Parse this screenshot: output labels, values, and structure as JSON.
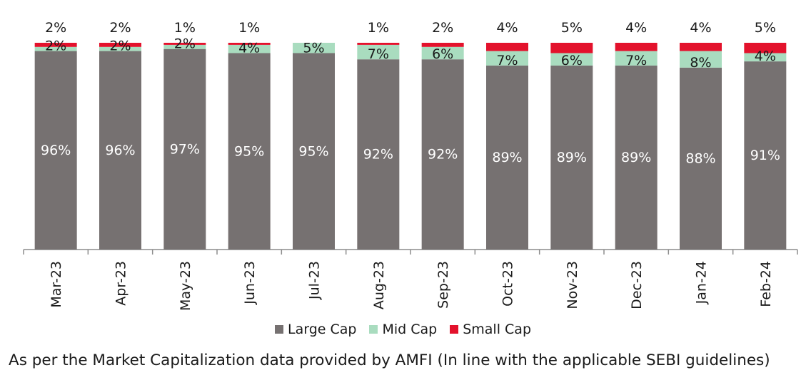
{
  "chart_data": {
    "type": "bar",
    "stacked": true,
    "categories": [
      "Mar-23",
      "Apr-23",
      "May-23",
      "Jun-23",
      "Jul-23",
      "Aug-23",
      "Sep-23",
      "Oct-23",
      "Nov-23",
      "Dec-23",
      "Jan-24",
      "Feb-24"
    ],
    "series": [
      {
        "name": "Large Cap",
        "color": "#767171",
        "values": [
          96,
          96,
          97,
          95,
          95,
          92,
          92,
          89,
          89,
          89,
          88,
          91
        ],
        "labels": [
          "96%",
          "96%",
          "97%",
          "95%",
          "95%",
          "92%",
          "92%",
          "89%",
          "89%",
          "89%",
          "88%",
          "91%"
        ]
      },
      {
        "name": "Mid Cap",
        "color": "#a9dcbf",
        "values": [
          2,
          2,
          2,
          4,
          5,
          7,
          6,
          7,
          6,
          7,
          8,
          4
        ],
        "labels": [
          "2%",
          "2%",
          "2%",
          "4%",
          "5%",
          "7%",
          "6%",
          "7%",
          "6%",
          "7%",
          "8%",
          "4%"
        ]
      },
      {
        "name": "Small Cap",
        "color": "#e3122c",
        "values": [
          2,
          2,
          1,
          1,
          0,
          1,
          2,
          4,
          5,
          4,
          4,
          5
        ],
        "labels": [
          "2%",
          "2%",
          "1%",
          "1%",
          "",
          "1%",
          "2%",
          "4%",
          "5%",
          "4%",
          "4%",
          "5%"
        ]
      }
    ],
    "ylim": [
      0,
      100
    ],
    "grid": false,
    "legend_position": "bottom"
  },
  "footnote": "As per the Market Capitalization data provided by AMFI (In line with the applicable SEBI guidelines)"
}
